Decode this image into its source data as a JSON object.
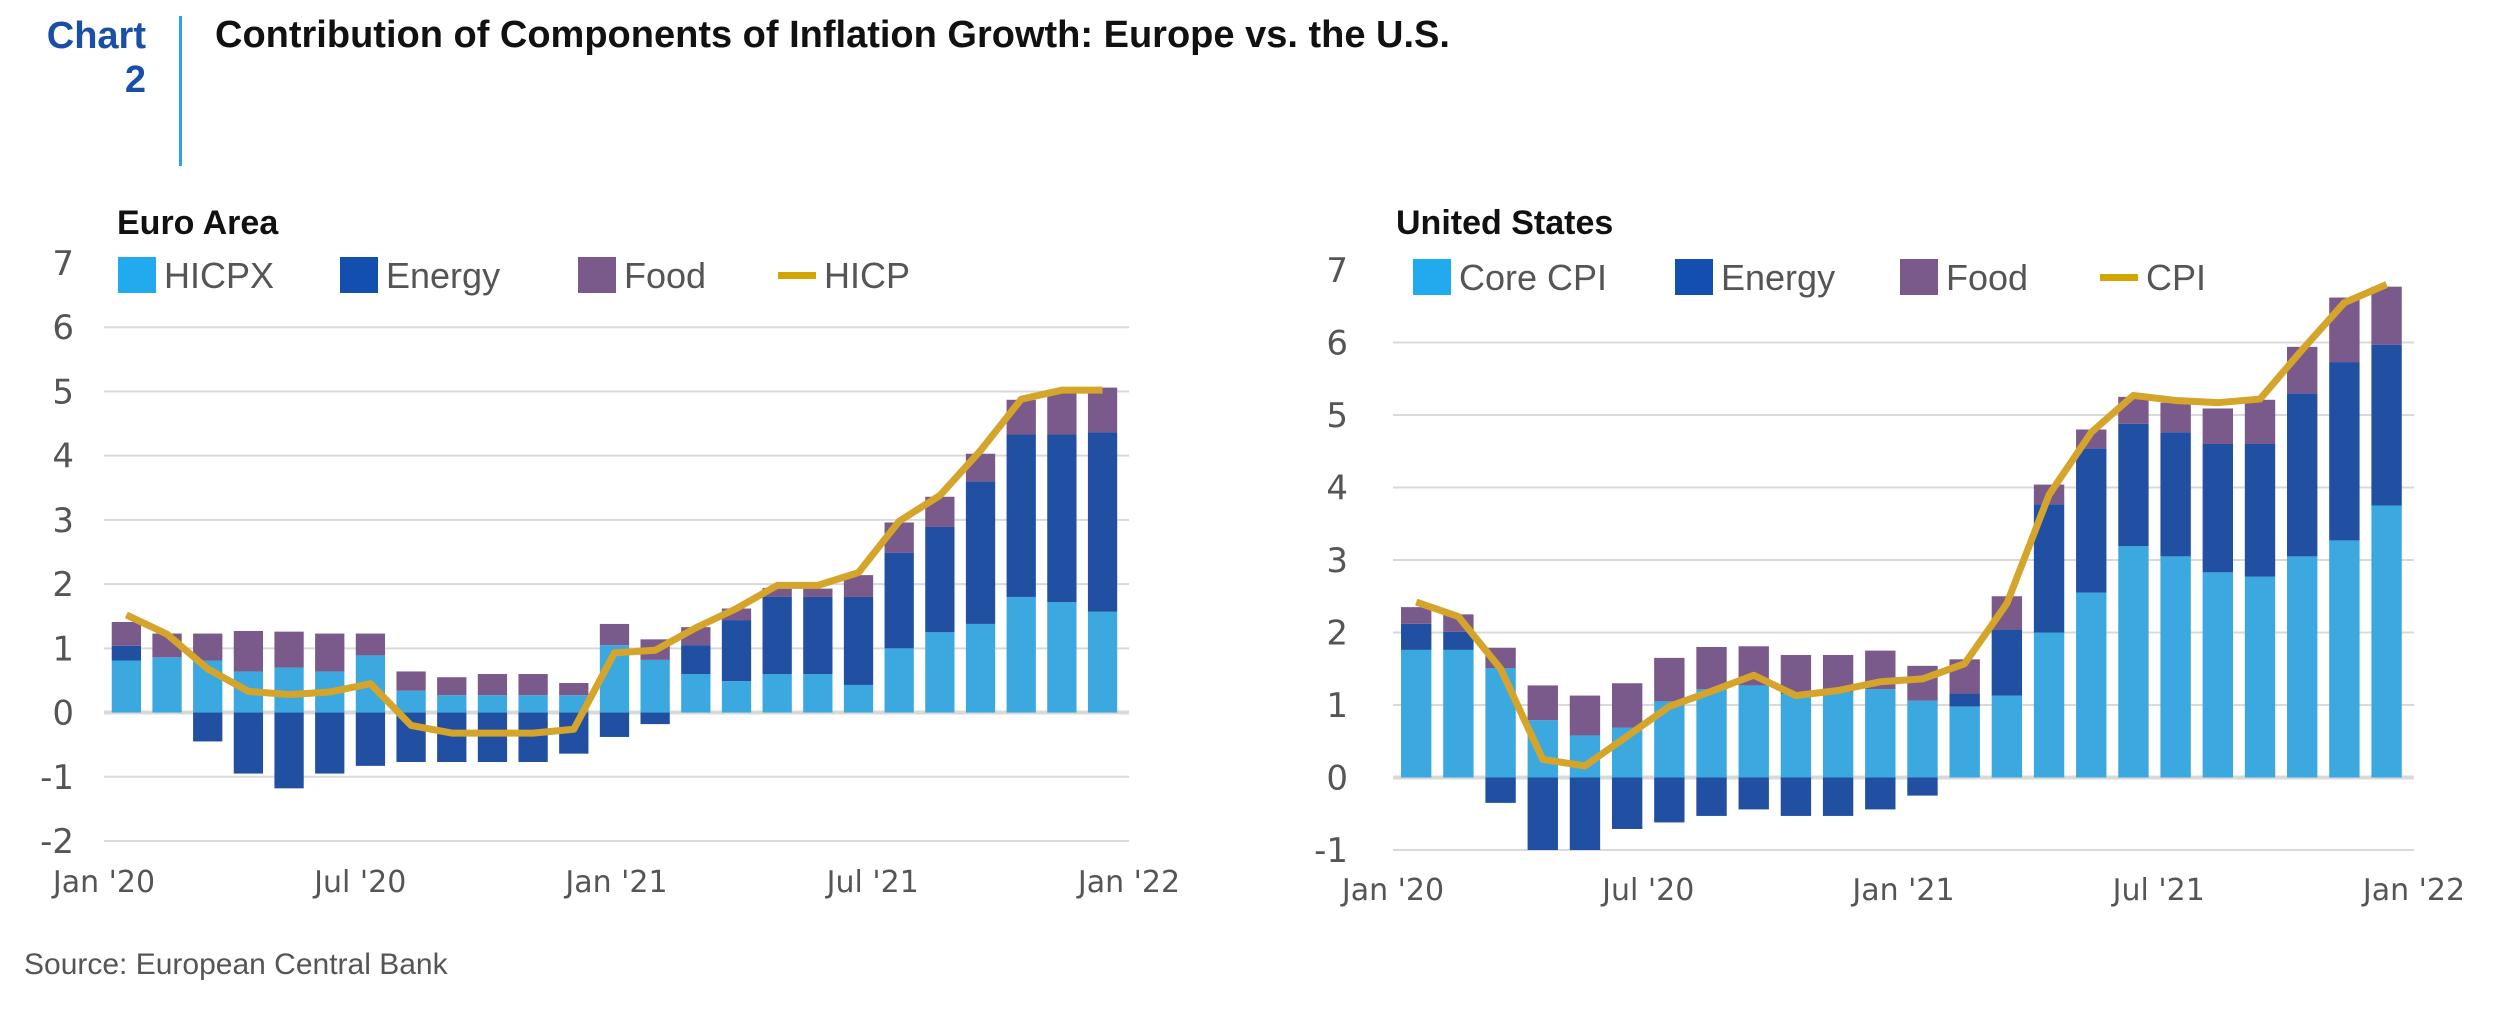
{
  "header": {
    "chart_label_line1": "Chart",
    "chart_label_line2": "2",
    "title": "Contribution of Components of Inflation Growth: Europe vs. the U.S."
  },
  "source": "Source: European Central Bank",
  "colors": {
    "core": "#3BA9DF",
    "energy": "#2150A3",
    "food": "#7A5A8A",
    "line": "#D4A52A",
    "legend_core": "#22AAEE",
    "legend_energy": "#134FAF",
    "legend_food": "#7A5A8A",
    "legend_line": "#D4A400",
    "grid": "#D9D9D9"
  },
  "chart_data": [
    {
      "type": "bar",
      "stacked": true,
      "title": "Euro Area",
      "ylim": [
        -2,
        7
      ],
      "yticks": [
        7,
        6,
        5,
        4,
        3,
        2,
        1,
        0,
        -1,
        -2
      ],
      "xtick_labels": [
        "Jan '20",
        "Jul '20",
        "Jan '21",
        "Jul '21",
        "Jan '22"
      ],
      "grid": true,
      "legend": "top-left",
      "categories": [
        "Jan 2020",
        "Feb 2020",
        "Mar 2020",
        "Apr 2020",
        "May 2020",
        "Jun 2020",
        "Jul 2020",
        "Aug 2020",
        "Sep 2020",
        "Oct 2020",
        "Nov 2020",
        "Dec 2020",
        "Jan 2021",
        "Feb 2021",
        "Mar 2021",
        "Apr 2021",
        "May 2021",
        "Jun 2021",
        "Jul 2021",
        "Aug 2021",
        "Sep 2021",
        "Oct 2021",
        "Nov 2021",
        "Dec 2021",
        "Jan 2022"
      ],
      "series": [
        {
          "name": "HICPX",
          "kind": "bar",
          "color_key": "core",
          "values": [
            0.81,
            0.86,
            0.81,
            0.64,
            0.7,
            0.64,
            0.89,
            0.34,
            0.27,
            0.27,
            0.27,
            0.27,
            1.05,
            0.82,
            0.6,
            0.49,
            0.6,
            0.6,
            0.43,
            1.0,
            1.25,
            1.38,
            1.8,
            1.72,
            1.57
          ]
        },
        {
          "name": "Energy",
          "kind": "bar",
          "color_key": "energy",
          "values": [
            0.23,
            0.0,
            -0.45,
            -0.95,
            -1.18,
            -0.95,
            -0.83,
            -0.77,
            -0.77,
            -0.77,
            -0.77,
            -0.64,
            -0.38,
            -0.18,
            0.45,
            0.95,
            1.2,
            1.2,
            1.37,
            1.49,
            1.64,
            2.22,
            2.53,
            2.61,
            2.79
          ]
        },
        {
          "name": "Food",
          "kind": "bar",
          "color_key": "food",
          "values": [
            0.37,
            0.37,
            0.42,
            0.63,
            0.56,
            0.59,
            0.34,
            0.3,
            0.28,
            0.33,
            0.33,
            0.19,
            0.33,
            0.32,
            0.28,
            0.18,
            0.14,
            0.13,
            0.34,
            0.47,
            0.47,
            0.43,
            0.54,
            0.67,
            0.7
          ]
        },
        {
          "name": "HICP",
          "kind": "line",
          "color_key": "line",
          "values": [
            1.52,
            1.22,
            0.68,
            0.33,
            0.28,
            0.32,
            0.45,
            -0.2,
            -0.32,
            -0.32,
            -0.32,
            -0.26,
            0.93,
            0.97,
            1.32,
            1.62,
            1.98,
            1.98,
            2.18,
            2.98,
            3.38,
            4.08,
            4.88,
            5.02,
            5.02
          ]
        }
      ]
    },
    {
      "type": "bar",
      "stacked": true,
      "title": "United States",
      "ylim": [
        -1,
        7
      ],
      "yticks": [
        7,
        6,
        5,
        4,
        3,
        2,
        1,
        0,
        -1
      ],
      "xtick_labels": [
        "Jan '20",
        "Jul '20",
        "Jan '21",
        "Jul '21",
        "Jan '22"
      ],
      "grid": true,
      "legend": "top-left",
      "categories": [
        "Jan 2020",
        "Feb 2020",
        "Mar 2020",
        "Apr 2020",
        "May 2020",
        "Jun 2020",
        "Jul 2020",
        "Aug 2020",
        "Sep 2020",
        "Oct 2020",
        "Nov 2020",
        "Dec 2020",
        "Jan 2021",
        "Feb 2021",
        "Mar 2021",
        "Apr 2021",
        "May 2021",
        "Jun 2021",
        "Jul 2021",
        "Aug 2021",
        "Sep 2021",
        "Oct 2021",
        "Nov 2021",
        "Dec 2021"
      ],
      "series": [
        {
          "name": "Core CPI",
          "kind": "bar",
          "color_key": "core",
          "values": [
            1.76,
            1.76,
            1.51,
            0.79,
            0.58,
            0.69,
            1.05,
            1.22,
            1.27,
            1.15,
            1.18,
            1.22,
            1.06,
            0.98,
            1.13,
            2.0,
            2.55,
            3.19,
            3.05,
            2.83,
            2.77,
            3.05,
            3.27,
            3.75
          ]
        },
        {
          "name": "Energy",
          "kind": "bar",
          "color_key": "energy",
          "values": [
            0.36,
            0.25,
            -0.35,
            -1.0,
            -1.0,
            -0.71,
            -0.62,
            -0.53,
            -0.44,
            -0.53,
            -0.53,
            -0.44,
            -0.25,
            0.18,
            0.91,
            1.77,
            1.99,
            1.69,
            1.71,
            1.77,
            1.83,
            2.25,
            2.46,
            2.22
          ]
        },
        {
          "name": "Food",
          "kind": "bar",
          "color_key": "food",
          "values": [
            0.23,
            0.24,
            0.28,
            0.48,
            0.55,
            0.61,
            0.6,
            0.58,
            0.54,
            0.54,
            0.51,
            0.53,
            0.48,
            0.47,
            0.46,
            0.27,
            0.26,
            0.37,
            0.41,
            0.49,
            0.61,
            0.64,
            0.89,
            0.8
          ]
        },
        {
          "name": "CPI",
          "kind": "line",
          "color_key": "line",
          "values": [
            2.42,
            2.22,
            1.5,
            0.25,
            0.16,
            0.57,
            0.98,
            1.19,
            1.41,
            1.13,
            1.2,
            1.32,
            1.36,
            1.57,
            2.4,
            3.9,
            4.76,
            5.27,
            5.2,
            5.17,
            5.22,
            5.9,
            6.55,
            6.8
          ]
        }
      ]
    }
  ]
}
